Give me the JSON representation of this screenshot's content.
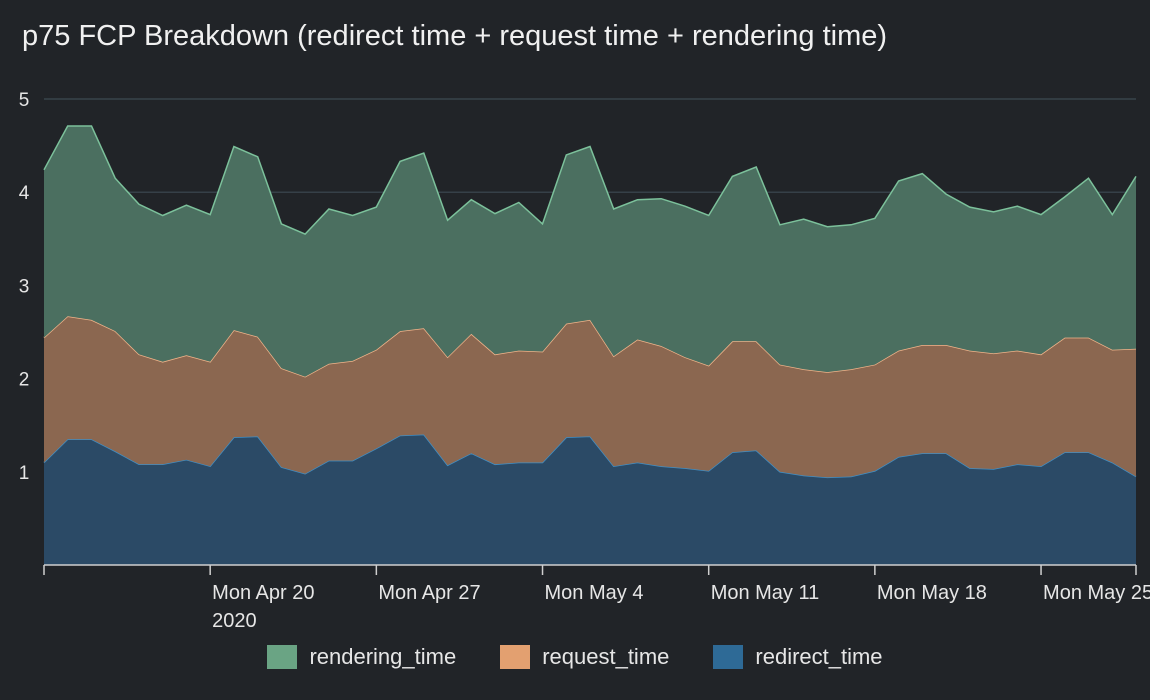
{
  "title": "p75 FCP Breakdown (redirect time + request time + rendering time)",
  "chart_data": {
    "type": "area",
    "stacked": true,
    "x": [
      "Apr 13",
      "Apr 14",
      "Apr 15",
      "Apr 16",
      "Apr 17",
      "Apr 18",
      "Apr 19",
      "Apr 20",
      "Apr 21",
      "Apr 22",
      "Apr 23",
      "Apr 24",
      "Apr 25",
      "Apr 26",
      "Apr 27",
      "Apr 28",
      "Apr 29",
      "Apr 30",
      "May 1",
      "May 2",
      "May 3",
      "May 4",
      "May 5",
      "May 6",
      "May 7",
      "May 8",
      "May 9",
      "May 10",
      "May 11",
      "May 12",
      "May 13",
      "May 14",
      "May 15",
      "May 16",
      "May 17",
      "May 18",
      "May 19",
      "May 20",
      "May 21",
      "May 22",
      "May 23",
      "May 24",
      "May 25",
      "May 26",
      "May 27",
      "May 28",
      "May 29"
    ],
    "x_ticks": [
      {
        "label": "Mon Apr 20",
        "sublabel": "2020",
        "x_index": 7
      },
      {
        "label": "Mon Apr 27",
        "sublabel": "",
        "x_index": 14
      },
      {
        "label": "Mon May 4",
        "sublabel": "",
        "x_index": 21
      },
      {
        "label": "Mon May 11",
        "sublabel": "",
        "x_index": 28
      },
      {
        "label": "Mon May 18",
        "sublabel": "",
        "x_index": 35
      },
      {
        "label": "Mon May 25",
        "sublabel": "",
        "x_index": 42
      }
    ],
    "yticks": [
      1,
      2,
      3,
      4,
      5
    ],
    "ylim": [
      0,
      5
    ],
    "grid": true,
    "legend_position": "bottom",
    "series": [
      {
        "name": "redirect_time",
        "color": "#2c6794",
        "values": [
          1.1,
          1.35,
          1.35,
          1.22,
          1.08,
          1.08,
          1.13,
          1.06,
          1.37,
          1.38,
          1.05,
          0.98,
          1.12,
          1.12,
          1.25,
          1.39,
          1.4,
          1.07,
          1.2,
          1.08,
          1.1,
          1.1,
          1.37,
          1.38,
          1.06,
          1.1,
          1.06,
          1.04,
          1.01,
          1.21,
          1.23,
          1.0,
          0.96,
          0.94,
          0.95,
          1.01,
          1.16,
          1.2,
          1.2,
          1.04,
          1.03,
          1.08,
          1.06,
          1.21,
          1.21,
          1.1,
          0.95
        ]
      },
      {
        "name": "request_time",
        "color": "#e59e6e",
        "values": [
          1.34,
          1.32,
          1.28,
          1.29,
          1.18,
          1.1,
          1.12,
          1.12,
          1.15,
          1.07,
          1.06,
          1.04,
          1.04,
          1.07,
          1.06,
          1.12,
          1.14,
          1.16,
          1.28,
          1.18,
          1.2,
          1.19,
          1.22,
          1.25,
          1.18,
          1.32,
          1.29,
          1.19,
          1.13,
          1.19,
          1.17,
          1.15,
          1.14,
          1.13,
          1.15,
          1.14,
          1.14,
          1.16,
          1.16,
          1.26,
          1.24,
          1.22,
          1.2,
          1.23,
          1.23,
          1.21,
          1.37
        ]
      },
      {
        "name": "rendering_time",
        "color": "#67a181",
        "values": [
          1.8,
          2.04,
          2.08,
          1.64,
          1.61,
          1.57,
          1.61,
          1.58,
          1.97,
          1.93,
          1.55,
          1.53,
          1.66,
          1.56,
          1.53,
          1.82,
          1.88,
          1.47,
          1.44,
          1.51,
          1.59,
          1.37,
          1.81,
          1.86,
          1.58,
          1.5,
          1.58,
          1.62,
          1.61,
          1.77,
          1.87,
          1.5,
          1.61,
          1.56,
          1.55,
          1.57,
          1.82,
          1.84,
          1.62,
          1.54,
          1.52,
          1.55,
          1.5,
          1.51,
          1.71,
          1.45,
          1.85
        ]
      }
    ]
  }
}
